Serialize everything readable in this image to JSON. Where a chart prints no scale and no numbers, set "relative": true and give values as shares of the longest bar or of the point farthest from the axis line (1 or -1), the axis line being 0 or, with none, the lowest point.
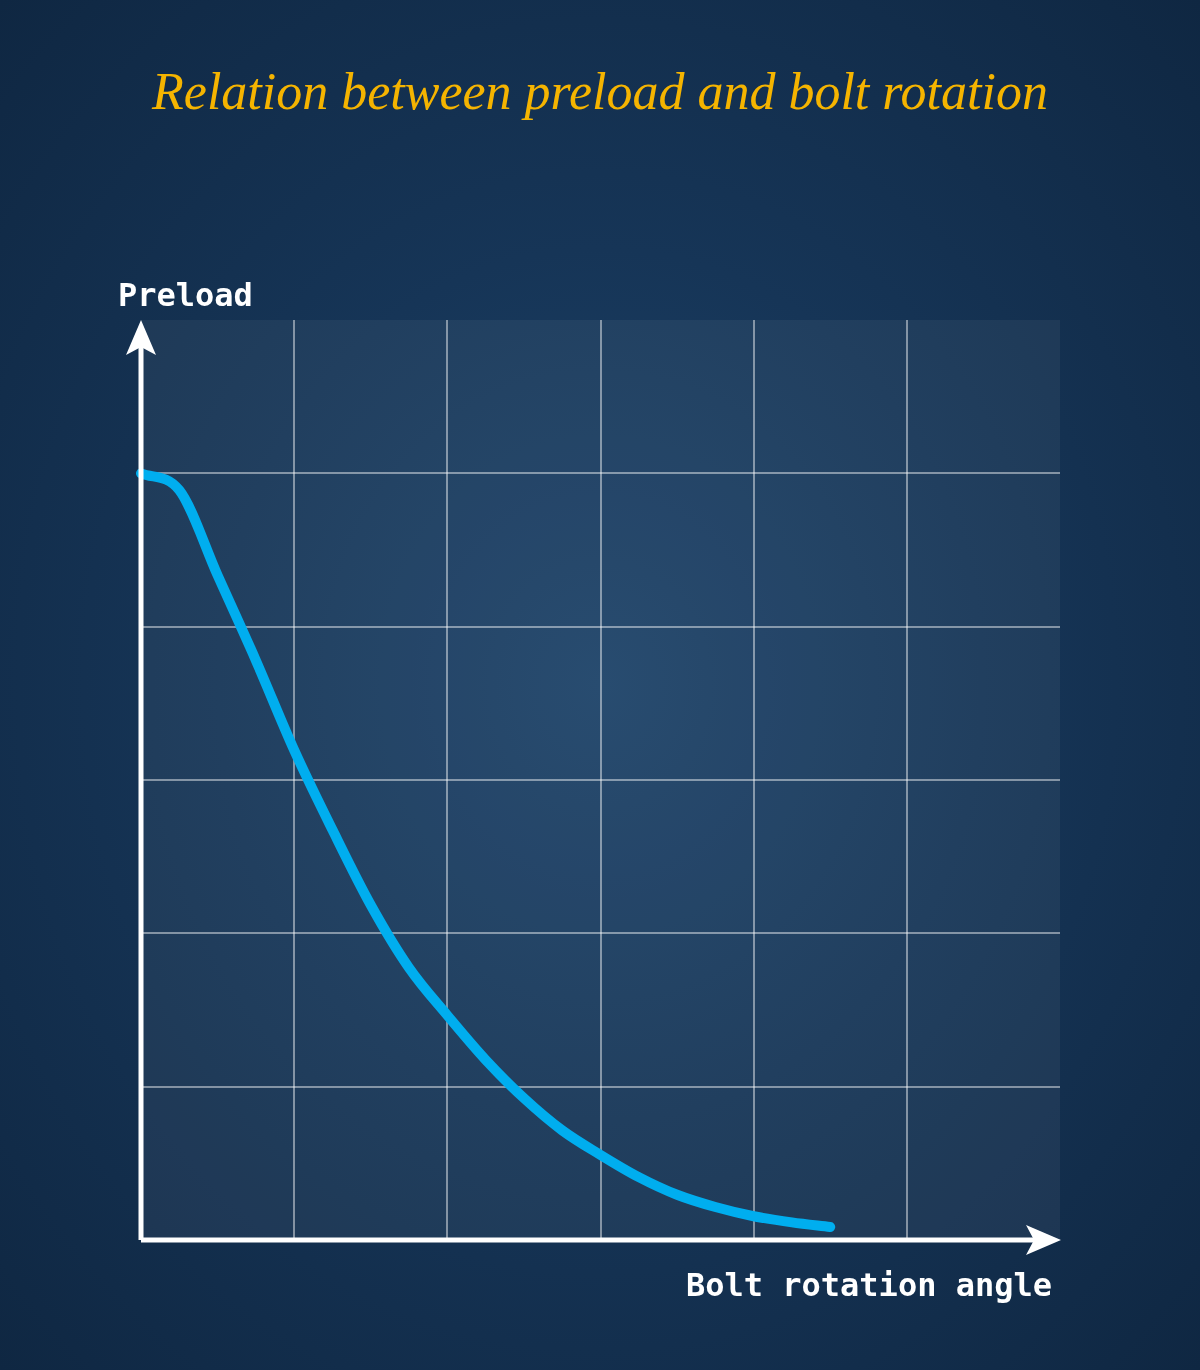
{
  "chart_data": {
    "type": "line",
    "title": "Relation between preload and bolt rotation",
    "xlabel": "Bolt rotation angle",
    "ylabel": "Preload",
    "categories": [
      null,
      null,
      null,
      null,
      null,
      null,
      null,
      null,
      null,
      null,
      null,
      null,
      null,
      null,
      null,
      null,
      null,
      null,
      null,
      null,
      null,
      null,
      null,
      null,
      null
    ],
    "values": [
      1.0,
      0.978,
      0.867,
      0.756,
      0.639,
      0.535,
      0.437,
      0.355,
      0.293,
      0.235,
      0.185,
      0.143,
      0.111,
      0.082,
      0.059,
      0.043,
      0.031,
      0.023,
      0.017,
      null,
      null,
      null,
      null,
      null,
      null
    ],
    "color": "#00aeef",
    "relative": true,
    "grid": true
  }
}
